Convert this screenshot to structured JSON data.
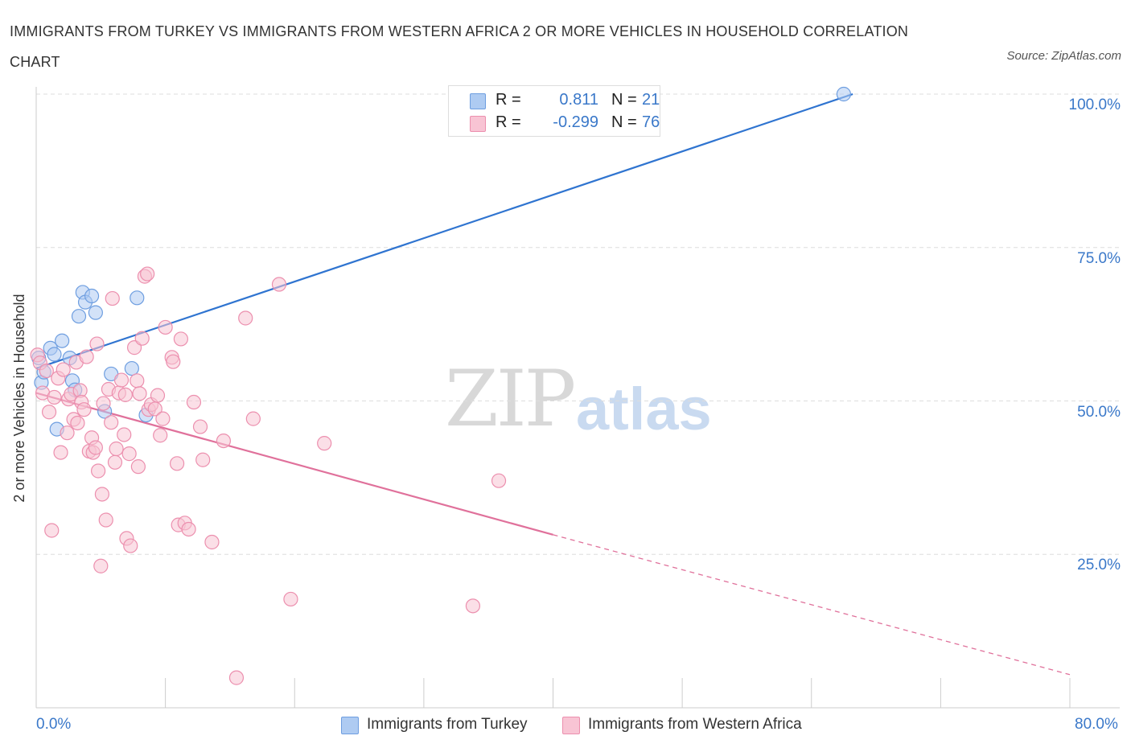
{
  "title": "IMMIGRANTS FROM TURKEY VS IMMIGRANTS FROM WESTERN AFRICA 2 OR MORE VEHICLES IN HOUSEHOLD CORRELATION CHART",
  "source": "Source: ZipAtlas.com",
  "watermark": {
    "zip": "ZIP",
    "atlas": "atlas"
  },
  "legend": {
    "rows": [
      {
        "r_label": "R =",
        "r_value": "0.811",
        "n_label": "N =",
        "n_value": "21",
        "color": "#aecbf2",
        "border": "#6e9ee0"
      },
      {
        "r_label": "R =",
        "r_value": "-0.299",
        "n_label": "N =",
        "n_value": "76",
        "color": "#f8c4d4",
        "border": "#ec8fae"
      }
    ]
  },
  "bottom_legend": [
    {
      "label": "Immigrants from Turkey",
      "color": "#aecbf2",
      "border": "#6e9ee0"
    },
    {
      "label": "Immigrants from Western Africa",
      "color": "#f8c4d4",
      "border": "#ec8fae"
    }
  ],
  "chart_data": {
    "type": "scatter",
    "title": "IMMIGRANTS FROM TURKEY VS IMMIGRANTS FROM WESTERN AFRICA 2 OR MORE VEHICLES IN HOUSEHOLD CORRELATION CHART",
    "xlabel": "",
    "ylabel": "2 or more Vehicles in Household",
    "xlim": [
      0,
      80
    ],
    "ylim": [
      0,
      100
    ],
    "x_tick_labels": [
      "0.0%",
      "80.0%"
    ],
    "y_tick_labels": [
      {
        "value": 100,
        "label": "100.0%"
      },
      {
        "value": 75,
        "label": "75.0%"
      },
      {
        "value": 50,
        "label": "50.0%"
      },
      {
        "value": 25,
        "label": "25.0%"
      }
    ],
    "grid": true,
    "series": [
      {
        "name": "Immigrants from Turkey",
        "color": "#6e9ee0",
        "fill": "#aecbf2",
        "trend_color": "#2f74d0",
        "trend": {
          "x": [
            0,
            63.2
          ],
          "y": [
            55.3,
            100
          ]
        },
        "points": [
          [
            0.4,
            53.0
          ],
          [
            0.6,
            54.7
          ],
          [
            1.1,
            58.6
          ],
          [
            1.4,
            57.6
          ],
          [
            1.6,
            45.4
          ],
          [
            2.0,
            59.8
          ],
          [
            2.6,
            57.0
          ],
          [
            2.8,
            53.3
          ],
          [
            3.0,
            51.8
          ],
          [
            3.3,
            63.8
          ],
          [
            3.6,
            67.7
          ],
          [
            3.8,
            66.1
          ],
          [
            4.3,
            67.1
          ],
          [
            4.6,
            64.4
          ],
          [
            5.3,
            48.3
          ],
          [
            5.8,
            54.4
          ],
          [
            7.4,
            55.3
          ],
          [
            7.8,
            66.8
          ],
          [
            8.5,
            47.7
          ],
          [
            62.5,
            100.0
          ],
          [
            0.2,
            57.0
          ]
        ]
      },
      {
        "name": "Immigrants from Western Africa",
        "color": "#ec8fae",
        "fill": "#f8c4d4",
        "trend_color": "#e0719b",
        "trend": {
          "x": [
            0,
            40
          ],
          "y": [
            51.3,
            28.2
          ]
        },
        "trend_dashed": {
          "x": [
            40,
            80
          ],
          "y": [
            28.2,
            5.4
          ]
        },
        "points": [
          [
            0.1,
            57.5
          ],
          [
            0.3,
            56.2
          ],
          [
            0.5,
            51.3
          ],
          [
            0.8,
            54.9
          ],
          [
            1.0,
            48.2
          ],
          [
            1.2,
            28.9
          ],
          [
            1.4,
            50.6
          ],
          [
            1.7,
            53.7
          ],
          [
            1.9,
            41.6
          ],
          [
            2.1,
            55.1
          ],
          [
            2.4,
            44.8
          ],
          [
            2.5,
            50.3
          ],
          [
            2.7,
            51.1
          ],
          [
            2.9,
            47.0
          ],
          [
            3.1,
            56.3
          ],
          [
            3.2,
            46.4
          ],
          [
            3.4,
            51.7
          ],
          [
            3.5,
            49.8
          ],
          [
            3.7,
            48.6
          ],
          [
            3.9,
            57.2
          ],
          [
            4.1,
            41.8
          ],
          [
            4.3,
            44.0
          ],
          [
            4.4,
            41.6
          ],
          [
            4.6,
            42.4
          ],
          [
            4.7,
            59.3
          ],
          [
            4.8,
            38.6
          ],
          [
            5.0,
            23.1
          ],
          [
            5.1,
            34.8
          ],
          [
            5.2,
            49.6
          ],
          [
            5.4,
            30.6
          ],
          [
            5.6,
            51.9
          ],
          [
            5.8,
            46.5
          ],
          [
            5.9,
            66.7
          ],
          [
            6.1,
            40.0
          ],
          [
            6.2,
            42.2
          ],
          [
            6.4,
            51.3
          ],
          [
            6.6,
            53.4
          ],
          [
            6.8,
            44.5
          ],
          [
            6.9,
            51.0
          ],
          [
            7.0,
            27.6
          ],
          [
            7.2,
            41.4
          ],
          [
            7.3,
            26.4
          ],
          [
            7.6,
            58.7
          ],
          [
            7.8,
            53.3
          ],
          [
            7.9,
            39.3
          ],
          [
            8.0,
            51.2
          ],
          [
            8.2,
            60.2
          ],
          [
            8.4,
            70.3
          ],
          [
            8.6,
            70.7
          ],
          [
            8.7,
            48.6
          ],
          [
            8.9,
            49.4
          ],
          [
            9.2,
            48.7
          ],
          [
            9.4,
            50.9
          ],
          [
            9.6,
            44.4
          ],
          [
            9.8,
            47.1
          ],
          [
            10.0,
            62.0
          ],
          [
            10.5,
            57.1
          ],
          [
            10.6,
            56.4
          ],
          [
            10.9,
            39.8
          ],
          [
            11.0,
            29.8
          ],
          [
            11.2,
            60.1
          ],
          [
            11.5,
            30.1
          ],
          [
            11.8,
            29.1
          ],
          [
            12.2,
            49.8
          ],
          [
            12.7,
            45.8
          ],
          [
            12.9,
            40.4
          ],
          [
            13.6,
            27.0
          ],
          [
            14.5,
            43.5
          ],
          [
            15.5,
            4.9
          ],
          [
            16.2,
            63.5
          ],
          [
            16.8,
            47.1
          ],
          [
            18.8,
            69.0
          ],
          [
            19.7,
            17.7
          ],
          [
            22.3,
            43.1
          ],
          [
            33.8,
            16.6
          ],
          [
            35.8,
            37.0
          ]
        ]
      }
    ]
  }
}
